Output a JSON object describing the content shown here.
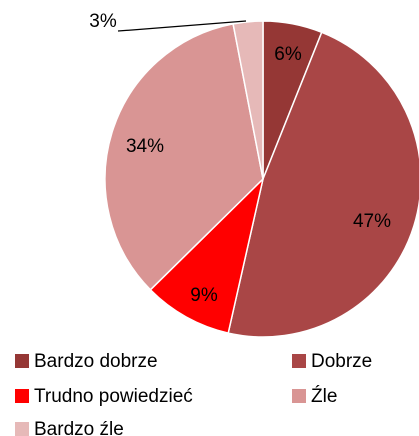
{
  "chart_data": {
    "type": "pie",
    "categories": [
      "Bardzo dobrze",
      "Dobrze",
      "Trudno powiedzieć",
      "Źle",
      "Bardzo źle"
    ],
    "values": [
      6,
      47,
      9,
      34,
      3
    ],
    "value_labels": [
      "6%",
      "47%",
      "9%",
      "34%",
      "3%"
    ],
    "colors": [
      "#953735",
      "#a94646",
      "#ff0000",
      "#d99594",
      "#e6b9b8"
    ],
    "legend": "bottom"
  }
}
